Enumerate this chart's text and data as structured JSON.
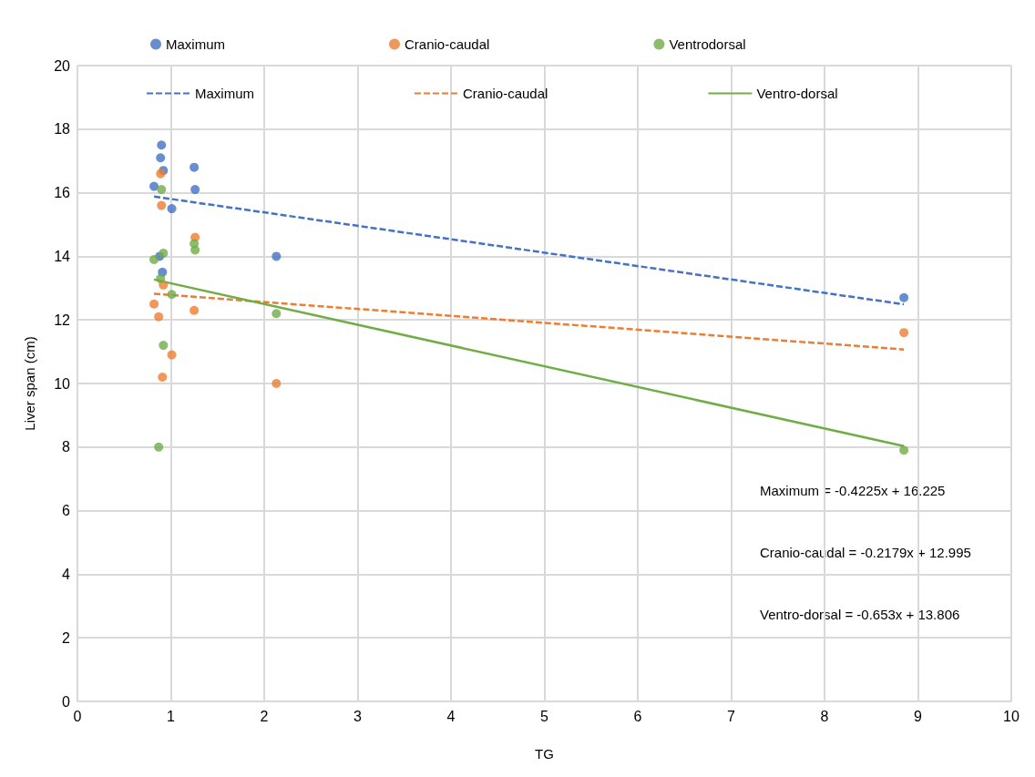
{
  "chart_data": {
    "type": "scatter",
    "xlabel": "TG",
    "ylabel": "Liver span (cm)",
    "xlim": [
      0,
      10
    ],
    "xticks": [
      0,
      1,
      2,
      3,
      4,
      5,
      6,
      7,
      8,
      9,
      10
    ],
    "ylim": [
      0,
      20
    ],
    "yticks": [
      0,
      2,
      4,
      6,
      8,
      10,
      12,
      14,
      16,
      18,
      20
    ],
    "grid": true,
    "legend": "top",
    "marker": "circle",
    "series": [
      {
        "name": "Maximum",
        "color": "#4472c4",
        "x": [
          0.82,
          0.9,
          0.89,
          0.92,
          1.01,
          1.25,
          1.26,
          0.88,
          0.91,
          2.13,
          8.85
        ],
        "values": [
          16.2,
          17.5,
          17.1,
          16.7,
          15.5,
          16.8,
          16.1,
          14.0,
          13.5,
          14.0,
          12.7
        ]
      },
      {
        "name": "Cranio-caudal",
        "color": "#ed7d31",
        "x": [
          0.89,
          0.9,
          1.26,
          0.92,
          0.82,
          0.87,
          1.25,
          1.01,
          0.91,
          2.13,
          8.85
        ],
        "values": [
          16.6,
          15.6,
          14.6,
          13.1,
          12.5,
          12.1,
          12.3,
          10.9,
          10.2,
          10.0,
          11.6
        ]
      },
      {
        "name": "Ventrodorsal",
        "color": "#70ad47",
        "x": [
          0.9,
          0.92,
          0.82,
          0.89,
          1.01,
          1.25,
          1.26,
          0.92,
          0.87,
          2.13,
          8.85
        ],
        "values": [
          16.1,
          14.1,
          13.9,
          13.3,
          12.8,
          14.4,
          14.2,
          11.2,
          8.0,
          12.2,
          7.9
        ]
      },
      {
        "name": "Maximum",
        "type": "line",
        "line_style": "dashed",
        "marker": "none",
        "color": "#4472c4",
        "x": [
          0.82,
          8.85
        ],
        "values": [
          15.88,
          12.49
        ]
      },
      {
        "name": "Cranio-caudal",
        "type": "line",
        "line_style": "dashed",
        "marker": "none",
        "color": "#ed7d31",
        "x": [
          0.82,
          8.85
        ],
        "values": [
          12.82,
          11.07
        ]
      },
      {
        "name": "Ventro-dorsal",
        "type": "line",
        "line_style": "solid",
        "marker": "none",
        "color": "#70ad47",
        "x": [
          0.82,
          8.85
        ],
        "values": [
          13.27,
          8.03
        ]
      }
    ],
    "annotations": [
      "Maximum = -0.4225x + 16.225",
      "Cranio-caudal = -0.2179x + 12.995",
      "Ventro-dorsal = -0.653x + 13.806"
    ]
  }
}
